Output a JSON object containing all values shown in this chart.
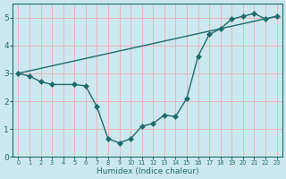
{
  "xlabel": "Humidex (Indice chaleur)",
  "bg_color": "#cce8ef",
  "grid_color": "#e8b4bc",
  "line_color": "#1e6b6b",
  "xlim": [
    -0.5,
    23.5
  ],
  "ylim": [
    0,
    5.5
  ],
  "xticks": [
    0,
    1,
    2,
    3,
    4,
    5,
    6,
    7,
    8,
    9,
    10,
    11,
    12,
    13,
    14,
    15,
    16,
    17,
    18,
    19,
    20,
    21,
    22,
    23
  ],
  "yticks": [
    0,
    1,
    2,
    3,
    4,
    5
  ],
  "line1_x": [
    0,
    23
  ],
  "line1_y": [
    3.0,
    5.05
  ],
  "curve2_x": [
    0,
    1,
    2,
    3,
    5,
    6,
    7,
    8,
    9,
    10,
    11,
    12,
    13,
    14,
    15,
    16,
    17,
    18,
    19,
    20,
    21,
    22,
    23
  ],
  "curve2_y": [
    3.0,
    2.9,
    2.7,
    2.6,
    2.6,
    2.55,
    1.8,
    0.65,
    0.5,
    0.65,
    1.1,
    1.2,
    1.5,
    1.45,
    2.1,
    3.6,
    4.4,
    4.6,
    4.95,
    5.05,
    5.15,
    4.95,
    5.05
  ],
  "markersize": 3
}
